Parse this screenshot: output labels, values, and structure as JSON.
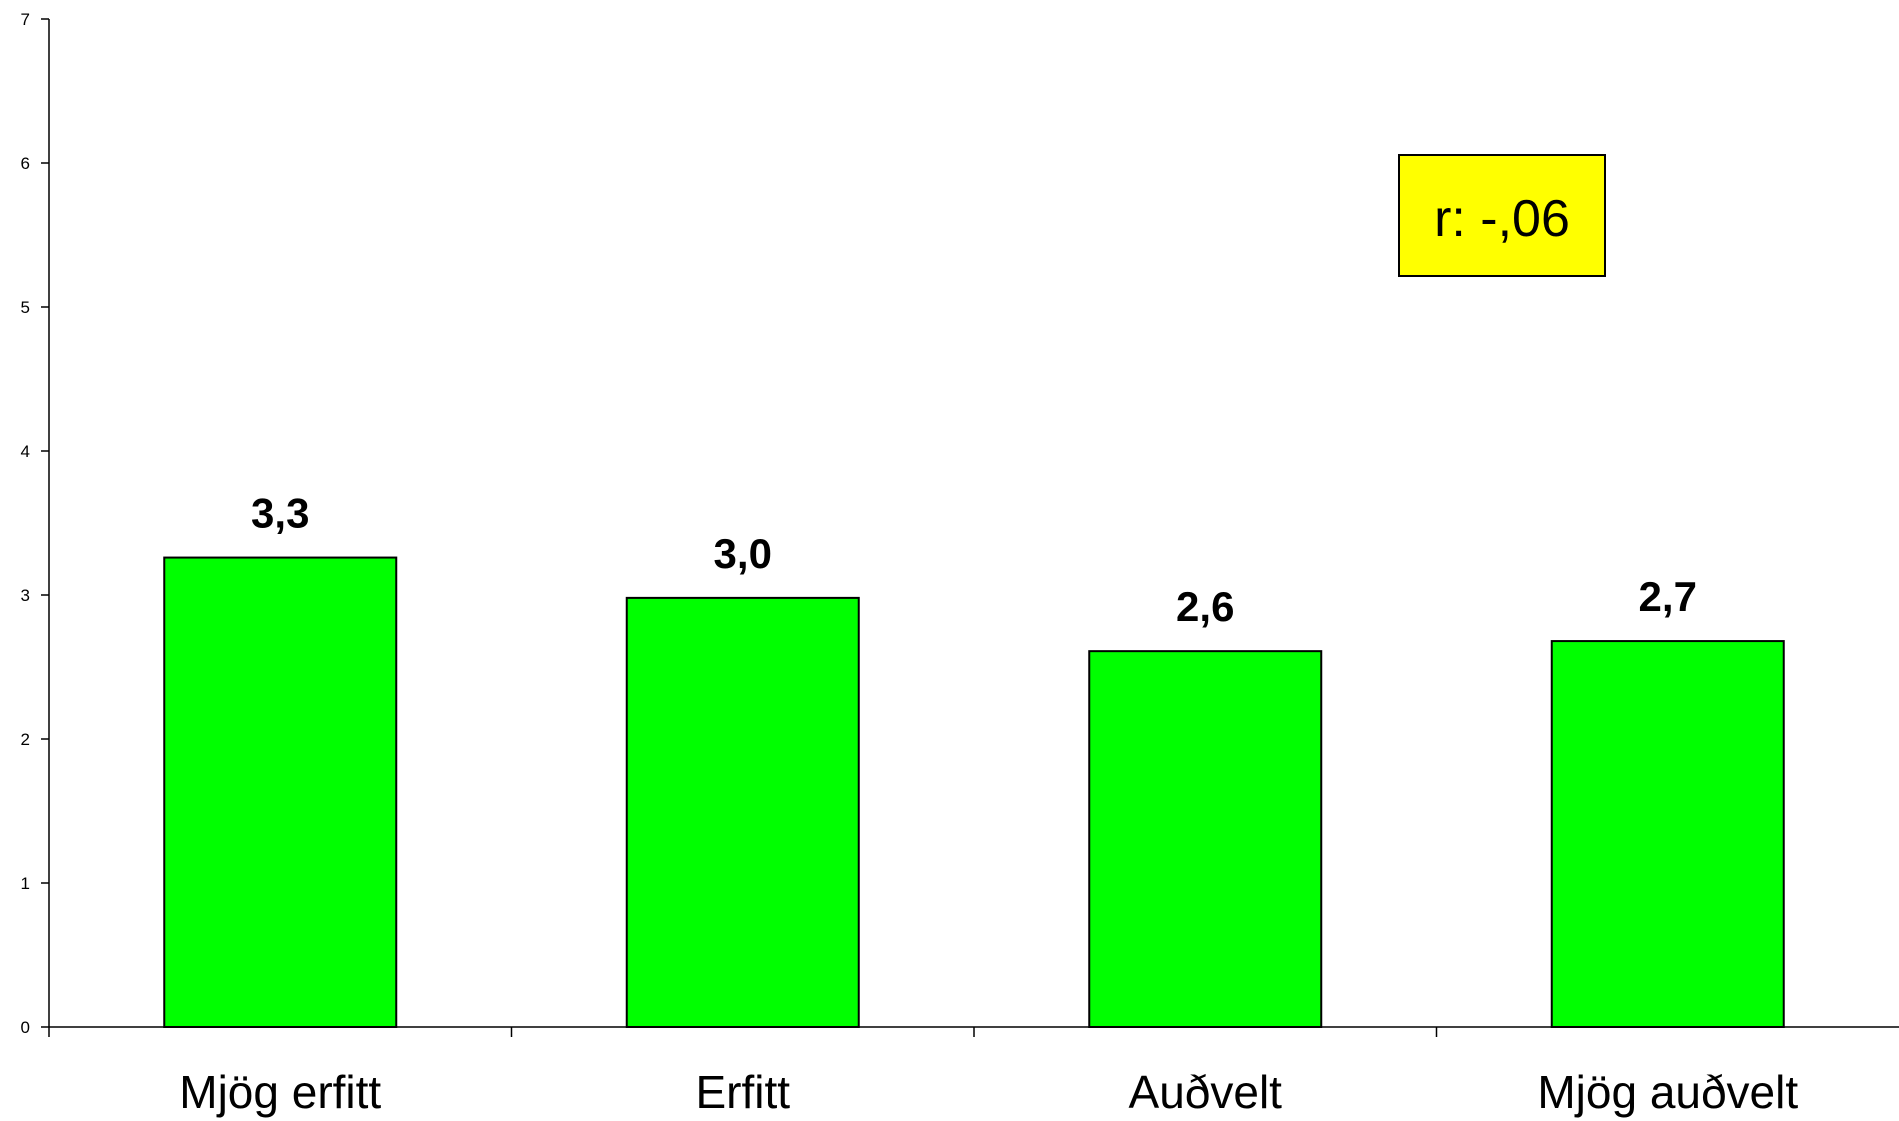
{
  "chart_data": {
    "type": "bar",
    "categories": [
      "Mjög erfitt",
      "Erfitt",
      "Auðvelt",
      "Mjög auðvelt"
    ],
    "values": [
      3.26,
      2.98,
      2.61,
      2.68
    ],
    "data_labels": [
      "3,3",
      "3,0",
      "2,6",
      "2,7"
    ],
    "yticks": [
      "0",
      "1",
      "2",
      "3",
      "4",
      "5",
      "6",
      "7"
    ],
    "ylim": [
      0,
      7
    ],
    "grid": false,
    "legend": "none",
    "bar_color": "#00ff00",
    "bar_edge_color": "#000000",
    "annotation": {
      "text": "r: -,06",
      "background": "#ffff00"
    }
  }
}
